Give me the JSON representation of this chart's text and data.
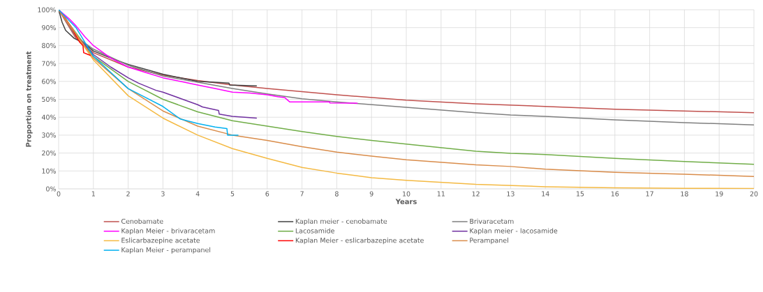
{
  "chart_data": {
    "type": "line",
    "xlabel": "Years",
    "ylabel": "Proportion on treatment",
    "xlim": [
      0,
      20
    ],
    "ylim": [
      0,
      100
    ],
    "xticks": [
      0,
      1,
      2,
      3,
      4,
      5,
      6,
      7,
      8,
      9,
      10,
      11,
      12,
      13,
      14,
      15,
      16,
      17,
      18,
      19,
      20
    ],
    "yticks": [
      {
        "value": 0,
        "label": "0%"
      },
      {
        "value": 10,
        "label": "10%"
      },
      {
        "value": 20,
        "label": "20%"
      },
      {
        "value": 30,
        "label": "30%"
      },
      {
        "value": 40,
        "label": "40%"
      },
      {
        "value": 50,
        "label": "50%"
      },
      {
        "value": 60,
        "label": "60%"
      },
      {
        "value": 70,
        "label": "70%"
      },
      {
        "value": 80,
        "label": "80%"
      },
      {
        "value": 90,
        "label": "90%"
      },
      {
        "value": 100,
        "label": "100%"
      }
    ],
    "grid": true,
    "legend": "bottom",
    "series": [
      {
        "name": "Cenobamate",
        "color": "#c0504d",
        "x": [
          0,
          0.5,
          1,
          2,
          3,
          4,
          5,
          6,
          8,
          10,
          12,
          14,
          16,
          18,
          20
        ],
        "values": [
          100,
          84,
          76,
          68,
          63.5,
          60.5,
          58,
          56,
          52.5,
          49.5,
          47.5,
          46,
          44.5,
          43.5,
          42.5
        ]
      },
      {
        "name": "Kaplan meier - cenobamate",
        "color": "#404040",
        "x": [
          0,
          0.1,
          0.2,
          0.45,
          0.72,
          1,
          1.5,
          2,
          3,
          4,
          4.9,
          4.92,
          5.7
        ],
        "values": [
          100,
          93,
          88.5,
          84,
          81.5,
          77,
          73,
          69.5,
          64,
          60,
          59,
          58,
          57.5
        ]
      },
      {
        "name": "Brivaracetam",
        "color": "#7f7f7f",
        "x": [
          0,
          0.5,
          1,
          2,
          3,
          4,
          5,
          6,
          7,
          8,
          9,
          10,
          12,
          13,
          14,
          16,
          18,
          20
        ],
        "values": [
          100,
          85,
          78,
          69,
          63,
          59.5,
          56,
          53,
          50.3,
          48.5,
          47,
          45.5,
          42.5,
          41.2,
          40.5,
          38.5,
          37,
          35.7
        ]
      },
      {
        "name": "Kaplan Meier - brivaracetam",
        "color": "#ff00ff",
        "x": [
          0,
          0.3,
          0.5,
          0.75,
          1,
          1.5,
          2,
          2.5,
          3,
          3.5,
          4,
          4.5,
          5,
          5.5,
          6,
          6.3,
          6.5,
          6.65,
          7.8,
          7.8,
          8.6
        ],
        "values": [
          100,
          95,
          91,
          85,
          80,
          73,
          68,
          65,
          62,
          60,
          58,
          56,
          54,
          53.5,
          52.5,
          51.5,
          51,
          48.5,
          48.5,
          48,
          47.8
        ]
      },
      {
        "name": "Lacosamide",
        "color": "#70ad47",
        "x": [
          0,
          1,
          2,
          3,
          4,
          5,
          6,
          7,
          8,
          9,
          10,
          12,
          13,
          14,
          16,
          18,
          20
        ],
        "values": [
          100,
          74,
          60,
          50,
          43,
          38,
          35,
          32,
          29.3,
          27,
          25,
          21,
          19.8,
          19.2,
          17,
          15.3,
          13.7
        ]
      },
      {
        "name": "Kaplan meier - lacosamide",
        "color": "#7030a0",
        "x": [
          0,
          0.5,
          1,
          1.5,
          2,
          2.3,
          2.8,
          3,
          3.5,
          4,
          4.14,
          4.6,
          4.62,
          5,
          5.7
        ],
        "values": [
          100,
          86,
          75,
          68,
          62,
          59,
          55,
          54,
          50.5,
          47,
          45.7,
          43.8,
          41.7,
          40.5,
          39.5
        ]
      },
      {
        "name": "Eslicarbazepine acetate",
        "color": "#f4b942",
        "x": [
          0,
          1,
          2,
          3,
          4,
          5,
          6,
          7,
          8,
          9,
          10,
          12,
          14,
          16,
          18,
          20
        ],
        "values": [
          100,
          72,
          52,
          39.5,
          30,
          22.5,
          17,
          12,
          8.8,
          6.2,
          4.8,
          2.5,
          1.2,
          0.6,
          0.3,
          0.2
        ]
      },
      {
        "name": "Kaplan Meier - eslicarbazepine acetate",
        "color": "#ff0000",
        "x": [
          0,
          0.2,
          0.4,
          0.6,
          0.7,
          0.72,
          0.85,
          0.92
        ],
        "values": [
          100,
          95,
          89,
          82,
          80,
          76,
          75,
          74.5
        ]
      },
      {
        "name": "Perampanel",
        "color": "#d98c4a",
        "x": [
          0,
          1,
          2,
          3,
          4,
          5,
          6,
          7,
          8,
          9,
          10,
          12,
          13,
          14,
          16,
          18,
          20
        ],
        "values": [
          100,
          73,
          56,
          43.5,
          35,
          30,
          27,
          23.5,
          20.5,
          18.3,
          16.2,
          13.4,
          12.5,
          11,
          9.2,
          8.2,
          6.9
        ]
      },
      {
        "name": "Kaplan Meier - perampanel",
        "color": "#00b0f0",
        "x": [
          0,
          0.5,
          1,
          1.5,
          2,
          2.5,
          3,
          3.5,
          3.7,
          4,
          4.5,
          4.84,
          4.86,
          5.17
        ],
        "values": [
          100,
          90,
          74,
          65,
          56,
          51,
          46,
          39,
          38,
          36.5,
          34.5,
          33.7,
          30,
          30
        ]
      }
    ]
  }
}
